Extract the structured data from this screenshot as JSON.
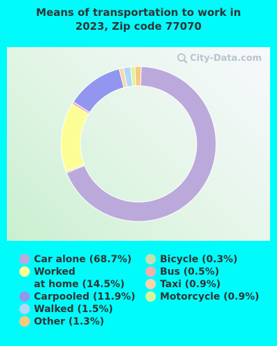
{
  "title": {
    "line1": "Means of transportation to work in",
    "line2": "2023, Zip code 77070"
  },
  "watermark": "City-Data.com",
  "chart_data": {
    "type": "pie",
    "style": "donut",
    "title": "Means of transportation to work in 2023, Zip code 77070",
    "slices": [
      {
        "label": "Car alone",
        "legend": "Car alone (68.7%)",
        "value": 68.7,
        "color": "#bca9db"
      },
      {
        "label": "Bicycle",
        "legend": "Bicycle (0.3%)",
        "value": 0.3,
        "color": "#c6dfad"
      },
      {
        "label": "Worked at home",
        "legend": "Worked\nat home (14.5%)",
        "value": 14.5,
        "color": "#fdfd96"
      },
      {
        "label": "Bus",
        "legend": "Bus (0.5%)",
        "value": 0.5,
        "color": "#f3aeb0"
      },
      {
        "label": "Carpooled",
        "legend": "Carpooled (11.9%)",
        "value": 11.9,
        "color": "#9396ef"
      },
      {
        "label": "Taxi",
        "legend": "Taxi (0.9%)",
        "value": 0.9,
        "color": "#f9d4ad"
      },
      {
        "label": "Walked",
        "legend": "Walked (1.5%)",
        "value": 1.5,
        "color": "#b2d8f8"
      },
      {
        "label": "Motorcycle",
        "legend": "Motorcycle (0.9%)",
        "value": 0.9,
        "color": "#d9f59a"
      },
      {
        "label": "Other",
        "legend": "Other (1.3%)",
        "value": 1.3,
        "color": "#fbc97b"
      }
    ],
    "legend_columns": [
      [
        "Car alone",
        "Worked at home",
        "Carpooled",
        "Walked",
        "Other"
      ],
      [
        "Bicycle",
        "Bus",
        "Taxi",
        "Motorcycle"
      ]
    ]
  }
}
